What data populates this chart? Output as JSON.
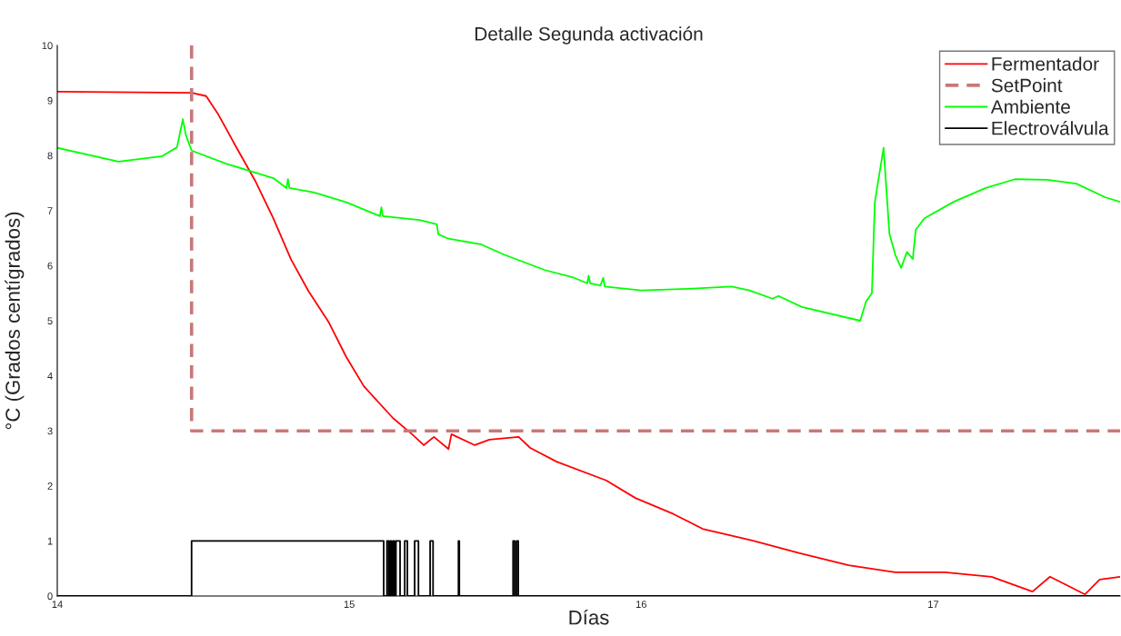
{
  "chart_data": {
    "type": "line",
    "title": "Detalle Segunda activación",
    "xlabel": "Días",
    "ylabel": "°C (Grados centígrados)",
    "xlim": [
      14,
      17.64
    ],
    "xticks": [
      14,
      15,
      16,
      17
    ],
    "ylim": [
      0,
      10
    ],
    "yticks": [
      0,
      1,
      2,
      3,
      4,
      5,
      6,
      7,
      8,
      9,
      10
    ],
    "grid": false,
    "legend": "top right",
    "series": [
      {
        "name": "Fermentador",
        "color": "#ff0000",
        "line_style": "solid",
        "x": [
          14.0,
          14.46,
          14.51,
          14.55,
          14.61,
          14.68,
          14.74,
          14.8,
          14.86,
          14.93,
          14.99,
          15.05,
          15.15,
          15.215,
          15.255,
          15.29,
          15.34,
          15.35,
          15.43,
          15.48,
          15.58,
          15.62,
          15.71,
          15.88,
          15.98,
          16.11,
          16.21,
          16.38,
          16.54,
          16.71,
          16.87,
          17.04,
          17.2,
          17.34,
          17.4,
          17.52,
          17.57,
          17.64
        ],
        "values": [
          9.16,
          9.14,
          9.08,
          8.76,
          8.18,
          7.52,
          6.86,
          6.12,
          5.54,
          4.97,
          4.34,
          3.81,
          3.23,
          2.94,
          2.74,
          2.89,
          2.67,
          2.94,
          2.74,
          2.84,
          2.89,
          2.69,
          2.44,
          2.1,
          1.78,
          1.49,
          1.22,
          1.01,
          0.78,
          0.56,
          0.43,
          0.43,
          0.35,
          0.08,
          0.35,
          0.03,
          0.3,
          0.35
        ]
      },
      {
        "name": "SetPoint",
        "color": "#c87878",
        "line_style": "dashed",
        "x": [
          14.46,
          14.46,
          17.64
        ],
        "values": [
          10,
          3,
          3
        ]
      },
      {
        "name": "Ambiente",
        "color": "#00ff00",
        "line_style": "solid",
        "x": [
          14.0,
          14.21,
          14.36,
          14.41,
          14.43,
          14.44,
          14.46,
          14.58,
          14.74,
          14.785,
          14.79,
          14.795,
          14.88,
          14.99,
          15.105,
          15.11,
          15.115,
          15.24,
          15.3,
          15.305,
          15.34,
          15.45,
          15.53,
          15.67,
          15.77,
          15.815,
          15.82,
          15.825,
          15.86,
          15.87,
          15.875,
          16.0,
          16.16,
          16.31,
          16.37,
          16.45,
          16.47,
          16.55,
          16.75,
          16.77,
          16.79,
          16.8,
          16.83,
          16.85,
          16.87,
          16.89,
          16.91,
          16.93,
          16.94,
          16.97,
          17.07,
          17.18,
          17.28,
          17.39,
          17.49,
          17.59,
          17.64
        ],
        "values": [
          8.14,
          7.89,
          7.99,
          8.15,
          8.66,
          8.38,
          8.09,
          7.85,
          7.59,
          7.41,
          7.57,
          7.41,
          7.33,
          7.15,
          6.9,
          7.06,
          6.9,
          6.83,
          6.75,
          6.57,
          6.49,
          6.39,
          6.2,
          5.92,
          5.78,
          5.68,
          5.82,
          5.68,
          5.64,
          5.78,
          5.62,
          5.55,
          5.58,
          5.62,
          5.55,
          5.4,
          5.45,
          5.25,
          5.0,
          5.35,
          5.5,
          7.15,
          8.14,
          6.58,
          6.2,
          5.96,
          6.25,
          6.12,
          6.65,
          6.86,
          7.16,
          7.41,
          7.57,
          7.56,
          7.49,
          7.24,
          7.16
        ]
      },
      {
        "name": "Electroválvula",
        "color": "#000000",
        "line_style": "solid",
        "x": [
          14.0,
          14.46,
          14.46,
          15.118,
          15.118,
          15.129,
          15.129,
          15.135,
          15.135,
          15.14,
          15.14,
          15.145,
          15.145,
          15.15,
          15.15,
          15.155,
          15.155,
          15.16,
          15.16,
          15.174,
          15.174,
          15.19,
          15.19,
          15.199,
          15.199,
          15.224,
          15.224,
          15.237,
          15.237,
          15.277,
          15.277,
          15.287,
          15.287,
          15.374,
          15.374,
          15.377,
          15.377,
          15.561,
          15.561,
          15.567,
          15.567,
          15.573,
          15.573,
          15.579,
          15.579,
          17.64
        ],
        "values": [
          0,
          0,
          1,
          1,
          0,
          0,
          1,
          1,
          0,
          0,
          1,
          1,
          0,
          0,
          1,
          1,
          0,
          0,
          1,
          1,
          0,
          0,
          1,
          1,
          0,
          0,
          1,
          1,
          0,
          0,
          1,
          1,
          0,
          0,
          1,
          1,
          0,
          0,
          1,
          1,
          0,
          0,
          1,
          1,
          0,
          0
        ]
      }
    ]
  }
}
